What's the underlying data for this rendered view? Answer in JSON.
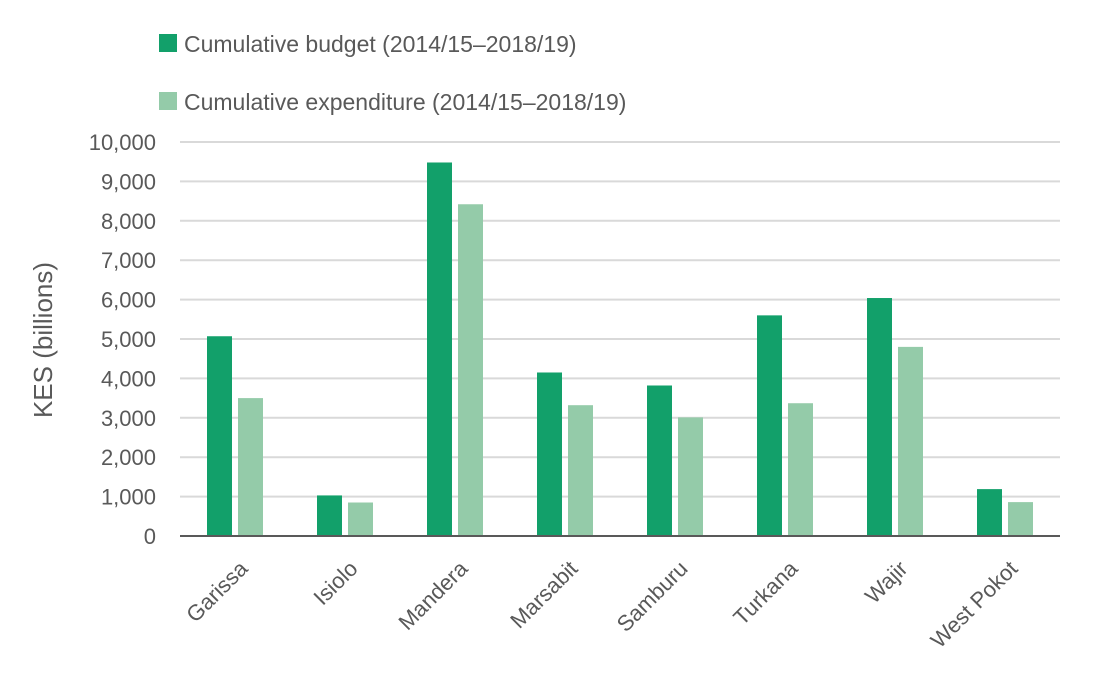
{
  "chart_data": {
    "type": "bar",
    "title": "",
    "xlabel": "",
    "ylabel": "KES (billions)",
    "ylim": [
      0,
      10000
    ],
    "yticks": [
      0,
      1000,
      2000,
      3000,
      4000,
      5000,
      6000,
      7000,
      8000,
      9000,
      10000
    ],
    "ytick_labels": [
      "0",
      "1,000",
      "2,000",
      "3,000",
      "4,000",
      "5,000",
      "6,000",
      "7,000",
      "8,000",
      "9,000",
      "10,000"
    ],
    "grid": true,
    "legend_position": "top-left",
    "categories": [
      "Garissa",
      "Isiolo",
      "Mandera",
      "Marsabit",
      "Samburu",
      "Turkana",
      "Wajir",
      "West Pokot"
    ],
    "series": [
      {
        "name": "Cumulative budget (2014/15–2018/19)",
        "color": "#12a06a",
        "values": [
          5070,
          1030,
          9480,
          4150,
          3820,
          5600,
          6040,
          1190
        ]
      },
      {
        "name": "Cumulative expenditure (2014/15–2018/19)",
        "color": "#94cba9",
        "values": [
          3500,
          850,
          8420,
          3320,
          3010,
          3370,
          4800,
          860
        ]
      }
    ]
  }
}
